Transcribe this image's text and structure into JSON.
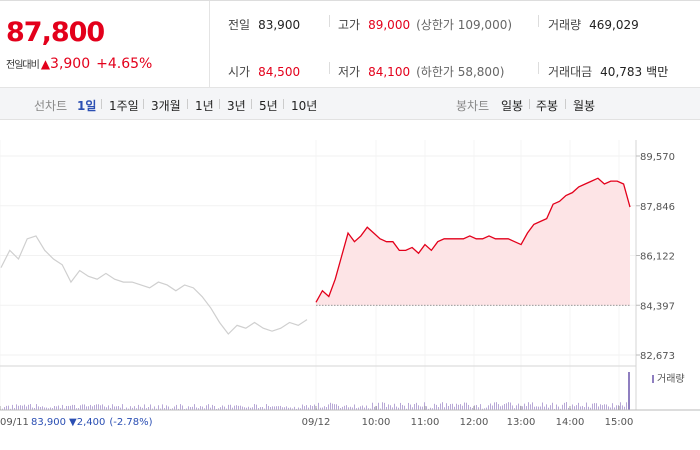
{
  "summary": {
    "price": "87,800",
    "change_label": "전일대비",
    "change_arrow": "▲",
    "change_value": "3,900",
    "change_percent": "+4.65%",
    "stats": {
      "prev_close": {
        "label": "전일",
        "value": "83,900"
      },
      "high": {
        "label": "고가",
        "value": "89,000",
        "sub": "(상한가 109,000)"
      },
      "volume": {
        "label": "거래량",
        "value": "469,029"
      },
      "open": {
        "label": "시가",
        "value": "84,500"
      },
      "low": {
        "label": "저가",
        "value": "84,100",
        "sub": "(하한가 58,800)"
      },
      "trade_value": {
        "label": "거래대금",
        "value": "40,783",
        "unit": "백만"
      }
    }
  },
  "toolbar": {
    "line_chart_label": "선차트",
    "periods": [
      "1일",
      "1주일",
      "3개월",
      "1년",
      "3년",
      "5년",
      "10년"
    ],
    "active_period": "1일",
    "candle_label": "봉차트",
    "candle_periods": [
      "일봉",
      "주봉",
      "월봉"
    ]
  },
  "colors": {
    "up": "#e3001b",
    "down": "#2b4fb3",
    "previous_day_line": "#cfcfcf",
    "fill": "#fde4e6",
    "volume_bar": "#b7a7d6"
  },
  "chart_data": {
    "type": "line",
    "y_ticks": [
      "89,570",
      "87,846",
      "86,122",
      "84,397",
      "82,673"
    ],
    "ylim": [
      82673,
      89570
    ],
    "baseline": 84397,
    "x_ticks": [
      "09/11",
      "09/12",
      "10:00",
      "11:00",
      "12:00",
      "13:00",
      "14:00",
      "15:00"
    ],
    "previous_day": {
      "date": "09/11",
      "close": "83,900",
      "change_arrow": "▼",
      "change": "2,400",
      "change_percent": "(-2.78%)",
      "values": [
        85700,
        86300,
        86000,
        86700,
        86800,
        86300,
        86000,
        85800,
        85200,
        85600,
        85400,
        85300,
        85500,
        85300,
        85200,
        85200,
        85100,
        85000,
        85200,
        85100,
        84900,
        85100,
        85000,
        84700,
        84300,
        83800,
        83400,
        83700,
        83600,
        83800,
        83600,
        83500,
        83600,
        83800,
        83700,
        83900
      ]
    },
    "today": {
      "date": "09/12",
      "values": [
        84500,
        84900,
        84700,
        85300,
        86100,
        86900,
        86600,
        86800,
        87100,
        86900,
        86700,
        86600,
        86600,
        86300,
        86300,
        86400,
        86200,
        86500,
        86300,
        86600,
        86700,
        86700,
        86700,
        86700,
        86800,
        86700,
        86700,
        86800,
        86700,
        86700,
        86700,
        86600,
        86500,
        86900,
        87200,
        87300,
        87400,
        87900,
        88000,
        88200,
        88300,
        88500,
        88600,
        88700,
        88800,
        88600,
        88700,
        88700,
        88600,
        87800
      ]
    },
    "volume_label": "거래량"
  }
}
